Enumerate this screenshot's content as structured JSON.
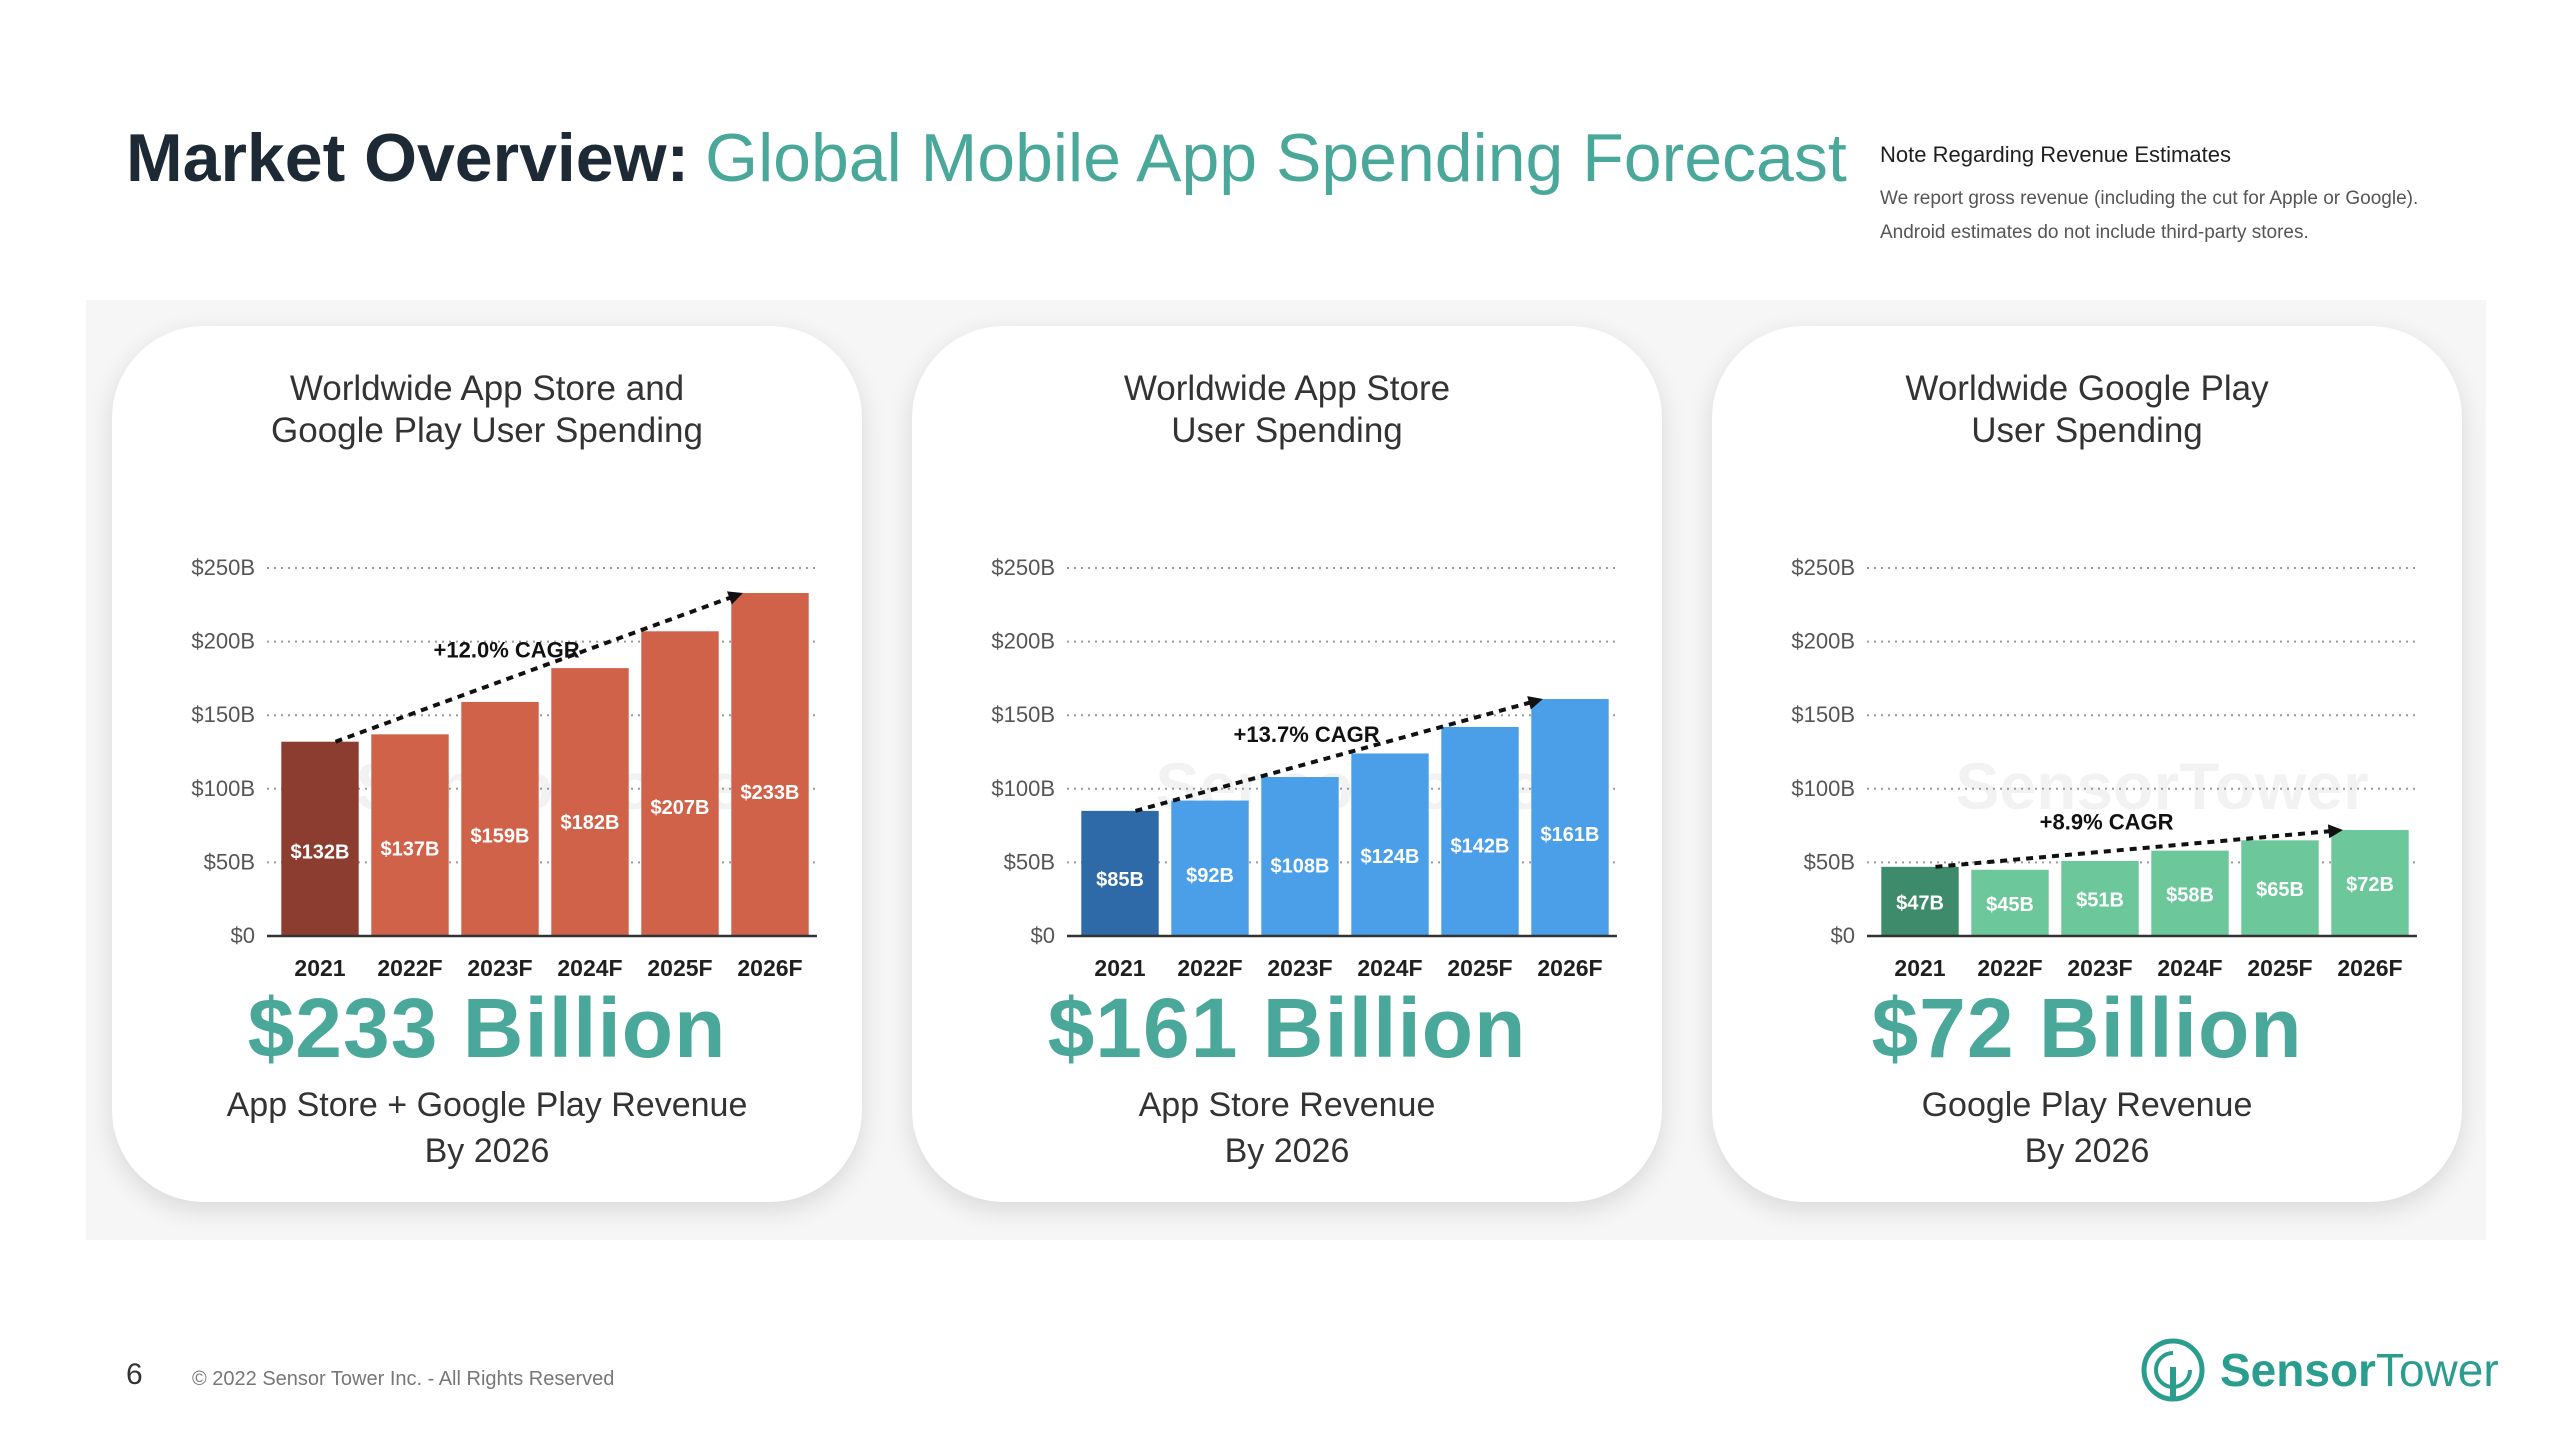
{
  "header": {
    "title_strong": "Market Overview:",
    "title_light": "Global Mobile App Spending Forecast"
  },
  "note": {
    "heading": "Note Regarding Revenue Estimates",
    "line1": "We report gross revenue (including the cut for Apple or Google).",
    "line2": "Android estimates do not include third-party stores."
  },
  "footer": {
    "page_number": "6",
    "copyright": "© 2022 Sensor Tower Inc. - All Rights Reserved",
    "brand_part1": "Sensor",
    "brand_part2": "Tower"
  },
  "watermark": "SensorTower",
  "colors": {
    "teal": "#4aa89a",
    "red": "#d0624a",
    "red_dark": "#8c3d2f",
    "blue": "#4a9fe8",
    "blue_dark": "#2f6aa8",
    "green": "#6cc79a",
    "green_dark": "#3d8b6a"
  },
  "cards": [
    {
      "title_line1": "Worldwide App Store and",
      "title_line2": "Google Play User Spending",
      "big_value": "$233 Billion",
      "sub_line1": "App Store + Google Play Revenue",
      "sub_line2": "By 2026"
    },
    {
      "title_line1": "Worldwide App Store",
      "title_line2": "User Spending",
      "big_value": "$161 Billion",
      "sub_line1": "App Store Revenue",
      "sub_line2": "By 2026"
    },
    {
      "title_line1": "Worldwide Google Play",
      "title_line2": "User Spending",
      "big_value": "$72 Billion",
      "sub_line1": "Google Play Revenue",
      "sub_line2": "By 2026"
    }
  ],
  "chart_data": [
    {
      "type": "bar",
      "title": "Worldwide App Store and Google Play User Spending",
      "categories": [
        "2021",
        "2022F",
        "2023F",
        "2024F",
        "2025F",
        "2026F"
      ],
      "values": [
        132,
        137,
        159,
        182,
        207,
        233
      ],
      "value_labels": [
        "$132B",
        "$137B",
        "$159B",
        "$182B",
        "$207B",
        "$233B"
      ],
      "ylim": [
        0,
        250
      ],
      "yticks": [
        0,
        50,
        100,
        150,
        200,
        250
      ],
      "ytick_labels": [
        "$0",
        "$50B",
        "$100B",
        "$150B",
        "$200B",
        "$250B"
      ],
      "annotation": "+12.0% CAGR",
      "color": "#d0624a",
      "first_bar_color": "#8c3d2f",
      "grid": "dotted"
    },
    {
      "type": "bar",
      "title": "Worldwide App Store User Spending",
      "categories": [
        "2021",
        "2022F",
        "2023F",
        "2024F",
        "2025F",
        "2026F"
      ],
      "values": [
        85,
        92,
        108,
        124,
        142,
        161
      ],
      "value_labels": [
        "$85B",
        "$92B",
        "$108B",
        "$124B",
        "$142B",
        "$161B"
      ],
      "ylim": [
        0,
        250
      ],
      "yticks": [
        0,
        50,
        100,
        150,
        200,
        250
      ],
      "ytick_labels": [
        "$0",
        "$50B",
        "$100B",
        "$150B",
        "$200B",
        "$250B"
      ],
      "annotation": "+13.7% CAGR",
      "color": "#4a9fe8",
      "first_bar_color": "#2f6aa8",
      "grid": "dotted"
    },
    {
      "type": "bar",
      "title": "Worldwide Google Play User Spending",
      "categories": [
        "2021",
        "2022F",
        "2023F",
        "2024F",
        "2025F",
        "2026F"
      ],
      "values": [
        47,
        45,
        51,
        58,
        65,
        72
      ],
      "value_labels": [
        "$47B",
        "$45B",
        "$51B",
        "$58B",
        "$65B",
        "$72B"
      ],
      "ylim": [
        0,
        250
      ],
      "yticks": [
        0,
        50,
        100,
        150,
        200,
        250
      ],
      "ytick_labels": [
        "$0",
        "$50B",
        "$100B",
        "$150B",
        "$200B",
        "$250B"
      ],
      "annotation": "+8.9% CAGR",
      "color": "#6cc79a",
      "first_bar_color": "#3d8b6a",
      "grid": "dotted"
    }
  ]
}
